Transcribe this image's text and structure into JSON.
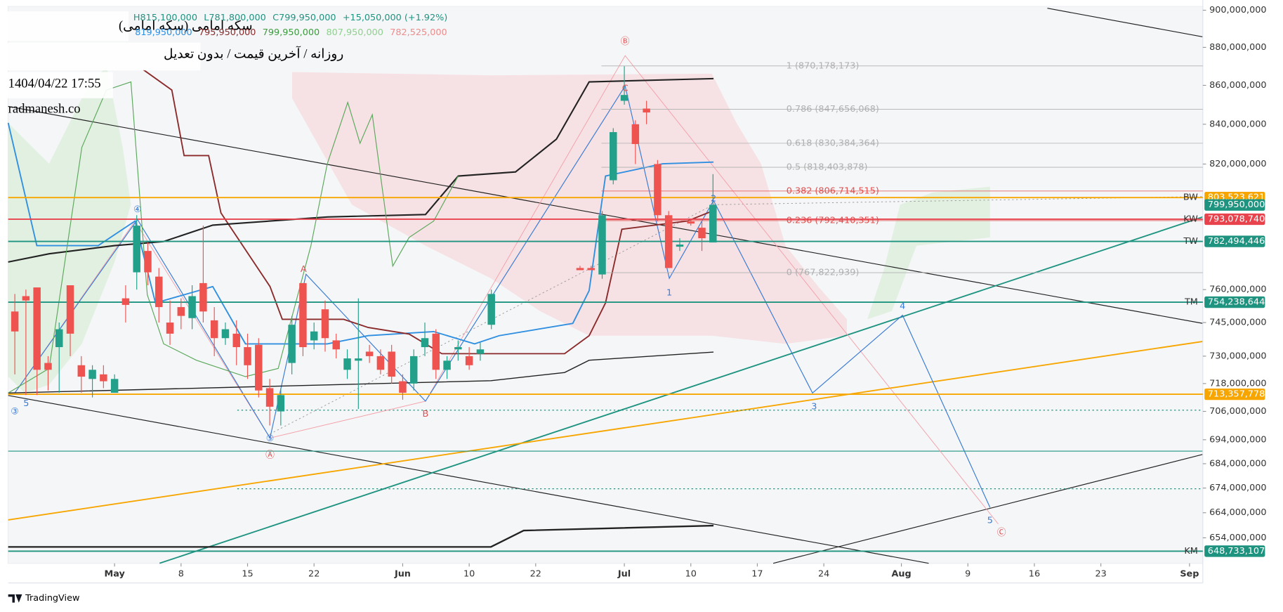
{
  "chart_data": {
    "type": "candlestick",
    "title": "سکه امامی (سکه امامی)",
    "subtitle": "روزانه / آخرین قیمت / بدون تعدیل",
    "timestamp": "1404/04/22 17:55",
    "watermark": "radmanesh.co",
    "brand": "TradingView",
    "ohlc_header": [
      "H815,100,000",
      "L781,800,000",
      "C799,950,000",
      "+15,050,000 (+1.92%)"
    ],
    "indicator_header": [
      {
        "text": "819,950,000",
        "color": "#2f8fe0"
      },
      {
        "text": "795,950,000",
        "color": "#8b2a2a"
      },
      {
        "text": "799,950,000",
        "color": "#3c9b3c"
      },
      {
        "text": "807,950,000",
        "color": "#8fd08f"
      },
      {
        "text": "782,525,000",
        "color": "#f08a8a"
      }
    ],
    "log_scale": true,
    "ylim": [
      644000000,
      902000000
    ],
    "yticks": [
      {
        "value": 900000000,
        "label": "900,000,000"
      },
      {
        "value": 880000000,
        "label": "880,000,000"
      },
      {
        "value": 860000000,
        "label": "860,000,000"
      },
      {
        "value": 840000000,
        "label": "840,000,000"
      },
      {
        "value": 820000000,
        "label": "820,000,000"
      },
      {
        "value": 760000000,
        "label": "760,000,000"
      },
      {
        "value": 745000000,
        "label": "745,000,000"
      },
      {
        "value": 730000000,
        "label": "730,000,000"
      },
      {
        "value": 718000000,
        "label": "718,000,000"
      },
      {
        "value": 706000000,
        "label": "706,000,000"
      },
      {
        "value": 694000000,
        "label": "694,000,000"
      },
      {
        "value": 684000000,
        "label": "684,000,000"
      },
      {
        "value": 674000000,
        "label": "674,000,000"
      },
      {
        "value": 664000000,
        "label": "664,000,000"
      },
      {
        "value": 654000000,
        "label": "654,000,000"
      }
    ],
    "xlim": [
      -0.6,
      107.2
    ],
    "xticks": [
      {
        "value": 9,
        "label": "May"
      },
      {
        "value": 15,
        "label": "8"
      },
      {
        "value": 21,
        "label": "15"
      },
      {
        "value": 27,
        "label": "22"
      },
      {
        "value": 35,
        "label": "Jun"
      },
      {
        "value": 41,
        "label": "10"
      },
      {
        "value": 47,
        "label": "22"
      },
      {
        "value": 55,
        "label": "Jul"
      },
      {
        "value": 61,
        "label": "10"
      },
      {
        "value": 67,
        "label": "17"
      },
      {
        "value": 73,
        "label": "24"
      },
      {
        "value": 80,
        "label": "Aug"
      },
      {
        "value": 86,
        "label": "9"
      },
      {
        "value": 92,
        "label": "16"
      },
      {
        "value": 98,
        "label": "23"
      },
      {
        "value": 106,
        "label": "Sep"
      }
    ],
    "up_color": "#22a08a",
    "down_color": "#ef5350",
    "candles": {
      "x": [
        0,
        1,
        2,
        3,
        4,
        5,
        6,
        7,
        8,
        9,
        10,
        11,
        12,
        13,
        14,
        15,
        16,
        17,
        18,
        19,
        20,
        21,
        22,
        23,
        24,
        25,
        26,
        27,
        28,
        29,
        30,
        31,
        32,
        33,
        34,
        35,
        36,
        37,
        38,
        39,
        40,
        41,
        42,
        43,
        51,
        52,
        53,
        54,
        55,
        56,
        57,
        58,
        59,
        60,
        61,
        62,
        63
      ],
      "open": [
        750000000,
        757000000,
        761000000,
        727000000,
        734000000,
        762000000,
        726000000,
        720000000,
        722000000,
        714000000,
        756000000,
        768000000,
        778000000,
        766000000,
        745000000,
        752000000,
        747000000,
        763000000,
        746000000,
        738000000,
        740000000,
        734000000,
        735000000,
        716000000,
        706000000,
        727000000,
        763000000,
        737000000,
        751000000,
        737000000,
        724000000,
        728000000,
        732000000,
        730000000,
        732000000,
        719000000,
        718000000,
        734000000,
        740000000,
        724000000,
        733000000,
        730000000,
        731000000,
        744000000,
        770000000,
        770000000,
        767000000,
        812000000,
        852000000,
        840000000,
        848000000,
        820000000,
        795000000,
        780000000,
        792000000,
        789000000,
        782000000
      ],
      "high": [
        758000000,
        760000000,
        761000000,
        730000000,
        745000000,
        762000000,
        730000000,
        726000000,
        726000000,
        722000000,
        762000000,
        795000000,
        782000000,
        770000000,
        755000000,
        756000000,
        762000000,
        790000000,
        752000000,
        745000000,
        746000000,
        740000000,
        738000000,
        720000000,
        716000000,
        748000000,
        763000000,
        745000000,
        755000000,
        740000000,
        733000000,
        756000000,
        735000000,
        733000000,
        735000000,
        722000000,
        733000000,
        745000000,
        742000000,
        730000000,
        737000000,
        734000000,
        736000000,
        760000000,
        771000000,
        771000000,
        797000000,
        838000000,
        870000000,
        842000000,
        852000000,
        822000000,
        797000000,
        784000000,
        793000000,
        792000000,
        815000000
      ],
      "low": [
        722000000,
        713000000,
        713000000,
        715000000,
        714000000,
        730000000,
        714000000,
        712000000,
        716000000,
        714000000,
        745000000,
        760000000,
        762000000,
        745000000,
        735000000,
        742000000,
        742000000,
        745000000,
        730000000,
        735000000,
        726000000,
        720000000,
        712000000,
        700000000,
        700000000,
        722000000,
        730000000,
        733000000,
        732000000,
        729000000,
        720000000,
        707000000,
        727000000,
        722000000,
        718000000,
        711000000,
        715000000,
        730000000,
        720000000,
        720000000,
        728000000,
        724000000,
        728000000,
        742000000,
        769000000,
        769000000,
        765000000,
        810000000,
        850000000,
        820000000,
        840000000,
        792000000,
        770000000,
        778000000,
        790000000,
        778000000,
        782000000
      ],
      "close": [
        741000000,
        755000000,
        724000000,
        724000000,
        742000000,
        740000000,
        721000000,
        724000000,
        719000000,
        720000000,
        753000000,
        790000000,
        768000000,
        752000000,
        740000000,
        748000000,
        757000000,
        750000000,
        738000000,
        742000000,
        734000000,
        726000000,
        715000000,
        708000000,
        713000000,
        744000000,
        734000000,
        741000000,
        738000000,
        733000000,
        729000000,
        729000000,
        730000000,
        724000000,
        721000000,
        714000000,
        730000000,
        738000000,
        724000000,
        728000000,
        734000000,
        726000000,
        733000000,
        758000000,
        769000000,
        769000000,
        795000000,
        836000000,
        855000000,
        830000000,
        846000000,
        795000000,
        770000000,
        781000000,
        791000000,
        784000000,
        800000000
      ]
    },
    "fib_levels": [
      {
        "label": "1 (870,178,173)",
        "value": 870178173,
        "color": "#b0b0b0"
      },
      {
        "label": "0.786 (847,656,068)",
        "value": 847656068,
        "color": "#b0b0b0"
      },
      {
        "label": "0.618 (830,384,364)",
        "value": 830384364,
        "color": "#b0b0b0"
      },
      {
        "label": "0.5 (818,403,878)",
        "value": 818403878,
        "color": "#b0b0b0"
      },
      {
        "label": "0.382 (806,714,515)",
        "value": 806714515,
        "color": "#e05050"
      },
      {
        "label": "0.236 (792,410,351)",
        "value": 792410351,
        "color": "#e05050"
      },
      {
        "label": "0 (767,822,939)",
        "value": 767822939,
        "color": "#b0b0b0"
      }
    ],
    "price_lines": [
      {
        "name": "BW",
        "value": 803523621,
        "value_label": "803,523,621",
        "color": "#f7a600"
      },
      {
        "name": "KW",
        "value": 793078740,
        "value_label": "793,078,740",
        "color": "#e8434d"
      },
      {
        "name": "TW",
        "value": 782494446,
        "value_label": "782,494,446",
        "color": "#1e9480"
      },
      {
        "name": "TM",
        "value": 754238644,
        "value_label": "754,238,644",
        "color": "#1e9480"
      },
      {
        "value": 713357778,
        "value_label": "713,357,778",
        "color": "#f7a600"
      },
      {
        "name": "KM",
        "value": 648733107,
        "value_label": "648,733,107",
        "color": "#1e9480"
      }
    ],
    "last_price": {
      "value": 799950000,
      "value_label": "799,950,000",
      "color": "#1e9480"
    },
    "wave_labels": [
      "Ⓑ",
      "C",
      "A",
      "B",
      "Ⓐ",
      "⑤",
      "④",
      "③",
      "5",
      "1",
      "2",
      "3",
      "4",
      "5",
      "Ⓒ"
    ]
  }
}
